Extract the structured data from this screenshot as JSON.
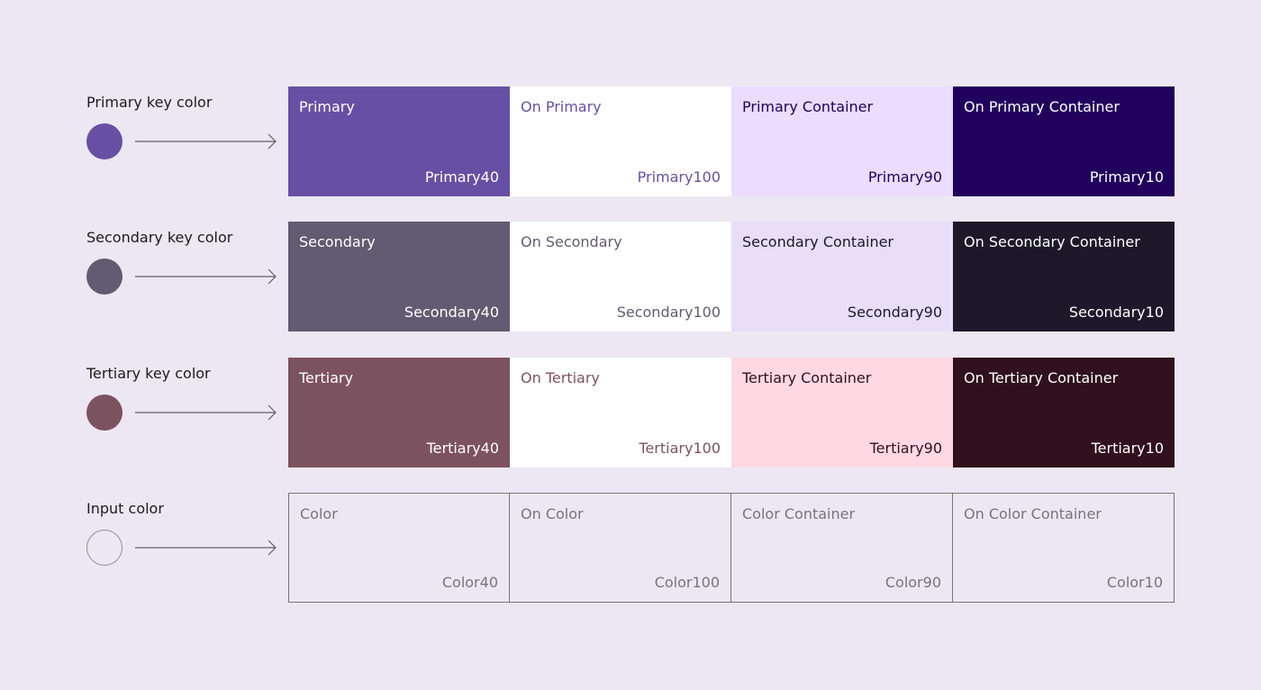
{
  "rows": [
    {
      "label": "Primary key color",
      "cells": [
        {
          "name": "Primary",
          "tone": "Primary40"
        },
        {
          "name": "On Primary",
          "tone": "Primary100"
        },
        {
          "name": "Primary Container",
          "tone": "Primary90"
        },
        {
          "name": "On Primary Container",
          "tone": "Primary10"
        }
      ]
    },
    {
      "label": "Secondary key color",
      "cells": [
        {
          "name": "Secondary",
          "tone": "Secondary40"
        },
        {
          "name": "On Secondary",
          "tone": "Secondary100"
        },
        {
          "name": "Secondary Container",
          "tone": "Secondary90"
        },
        {
          "name": "On Secondary Container",
          "tone": "Secondary10"
        }
      ]
    },
    {
      "label": "Tertiary key color",
      "cells": [
        {
          "name": "Tertiary",
          "tone": "Tertiary40"
        },
        {
          "name": "On Tertiary",
          "tone": "Tertiary100"
        },
        {
          "name": "Tertiary Container",
          "tone": "Tertiary90"
        },
        {
          "name": "On Tertiary Container",
          "tone": "Tertiary10"
        }
      ]
    },
    {
      "label": "Input color",
      "cells": [
        {
          "name": "Color",
          "tone": "Color40"
        },
        {
          "name": "On Color",
          "tone": "Color100"
        },
        {
          "name": "Color Container",
          "tone": "Color90"
        },
        {
          "name": "On Color Container",
          "tone": "Color10"
        }
      ]
    }
  ]
}
